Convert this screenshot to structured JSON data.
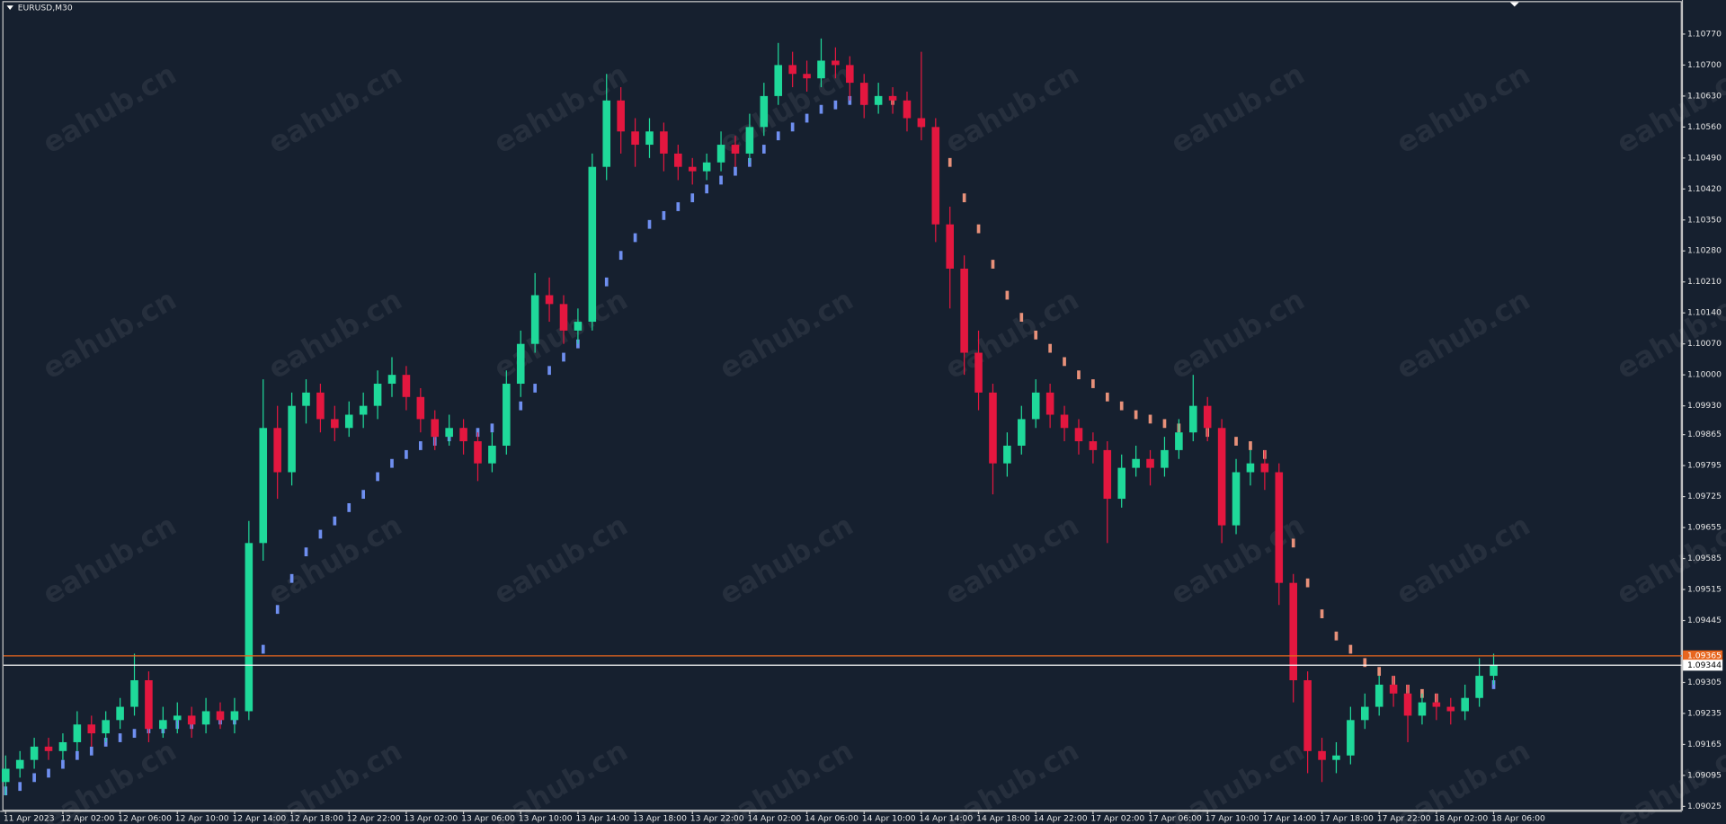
{
  "chart_data": {
    "type": "candlestick",
    "title": "EURUSD,M30",
    "watermark": "eahub.cn",
    "up_color": "#1fd99a",
    "down_color": "#e3173f",
    "xticks": [
      {
        "value": 0,
        "label": "11 Apr 2023"
      },
      {
        "value": 4,
        "label": "12 Apr 02:00"
      },
      {
        "value": 8,
        "label": "12 Apr 06:00"
      },
      {
        "value": 12,
        "label": "12 Apr 10:00"
      },
      {
        "value": 16,
        "label": "12 Apr 14:00"
      },
      {
        "value": 20,
        "label": "12 Apr 18:00"
      },
      {
        "value": 24,
        "label": "12 Apr 22:00"
      },
      {
        "value": 28,
        "label": "13 Apr 02:00"
      },
      {
        "value": 32,
        "label": "13 Apr 06:00"
      },
      {
        "value": 36,
        "label": "13 Apr 10:00"
      },
      {
        "value": 40,
        "label": "13 Apr 14:00"
      },
      {
        "value": 44,
        "label": "13 Apr 18:00"
      },
      {
        "value": 48,
        "label": "13 Apr 22:00"
      },
      {
        "value": 52,
        "label": "14 Apr 02:00"
      },
      {
        "value": 56,
        "label": "14 Apr 06:00"
      },
      {
        "value": 60,
        "label": "14 Apr 10:00"
      },
      {
        "value": 64,
        "label": "14 Apr 14:00"
      },
      {
        "value": 68,
        "label": "14 Apr 18:00"
      },
      {
        "value": 72,
        "label": "14 Apr 22:00"
      },
      {
        "value": 76,
        "label": "17 Apr 02:00"
      },
      {
        "value": 80,
        "label": "17 Apr 06:00"
      },
      {
        "value": 84,
        "label": "17 Apr 10:00"
      },
      {
        "value": 88,
        "label": "17 Apr 14:00"
      },
      {
        "value": 92,
        "label": "17 Apr 18:00"
      },
      {
        "value": 96,
        "label": "17 Apr 22:00"
      },
      {
        "value": 100,
        "label": "18 Apr 02:00"
      },
      {
        "value": 104,
        "label": "18 Apr 06:00"
      }
    ],
    "ylim": [
      1.09015,
      1.10847
    ],
    "yticks": [
      {
        "value": 1.1077,
        "label": "1.10770"
      },
      {
        "value": 1.107,
        "label": "1.10700"
      },
      {
        "value": 1.1063,
        "label": "1.10630"
      },
      {
        "value": 1.1056,
        "label": "1.10560"
      },
      {
        "value": 1.1049,
        "label": "1.10490"
      },
      {
        "value": 1.1042,
        "label": "1.10420"
      },
      {
        "value": 1.1035,
        "label": "1.10350"
      },
      {
        "value": 1.1028,
        "label": "1.10280"
      },
      {
        "value": 1.1021,
        "label": "1.10210"
      },
      {
        "value": 1.1014,
        "label": "1.10140"
      },
      {
        "value": 1.1007,
        "label": "1.10070"
      },
      {
        "value": 1.1,
        "label": "1.10000"
      },
      {
        "value": 1.0993,
        "label": "1.09930"
      },
      {
        "value": 1.09865,
        "label": "1.09865"
      },
      {
        "value": 1.09795,
        "label": "1.09795"
      },
      {
        "value": 1.09725,
        "label": "1.09725"
      },
      {
        "value": 1.09655,
        "label": "1.09655"
      },
      {
        "value": 1.09585,
        "label": "1.09585"
      },
      {
        "value": 1.09515,
        "label": "1.09515"
      },
      {
        "value": 1.09445,
        "label": "1.09445"
      },
      {
        "value": 1.09305,
        "label": "1.09305"
      },
      {
        "value": 1.09235,
        "label": "1.09235"
      },
      {
        "value": 1.09165,
        "label": "1.09165"
      },
      {
        "value": 1.09095,
        "label": "1.09095"
      },
      {
        "value": 1.09025,
        "label": "1.09025"
      }
    ],
    "price_lines": [
      {
        "value": 1.09365,
        "label": "1.09365",
        "color": "#e8661e"
      },
      {
        "value": 1.09344,
        "label": "1.09344",
        "color": "#ffffff"
      }
    ],
    "ohlc": [
      [
        1.0908,
        1.0914,
        1.0905,
        1.0911
      ],
      [
        1.0911,
        1.0915,
        1.0909,
        1.0913
      ],
      [
        1.0913,
        1.0918,
        1.0911,
        1.0916
      ],
      [
        1.0916,
        1.0918,
        1.0913,
        1.0915
      ],
      [
        1.0915,
        1.0919,
        1.0913,
        1.0917
      ],
      [
        1.0917,
        1.0924,
        1.0915,
        1.0921
      ],
      [
        1.0921,
        1.0923,
        1.0916,
        1.0919
      ],
      [
        1.0919,
        1.0924,
        1.0917,
        1.0922
      ],
      [
        1.0922,
        1.0927,
        1.092,
        1.0925
      ],
      [
        1.0925,
        1.0937,
        1.0923,
        1.0931
      ],
      [
        1.0931,
        1.0933,
        1.0917,
        1.092
      ],
      [
        1.092,
        1.0925,
        1.0918,
        1.0922
      ],
      [
        1.0922,
        1.0926,
        1.0919,
        1.0923
      ],
      [
        1.0923,
        1.0925,
        1.0918,
        1.0921
      ],
      [
        1.0921,
        1.0927,
        1.0919,
        1.0924
      ],
      [
        1.0924,
        1.0926,
        1.092,
        1.0922
      ],
      [
        1.0922,
        1.0927,
        1.0919,
        1.0924
      ],
      [
        1.0924,
        1.0967,
        1.0922,
        1.0962
      ],
      [
        1.0962,
        1.0999,
        1.0958,
        1.0988
      ],
      [
        1.0988,
        1.0993,
        1.0972,
        1.0978
      ],
      [
        1.0978,
        1.0996,
        1.0975,
        1.0993
      ],
      [
        1.0993,
        1.0999,
        1.0989,
        1.0996
      ],
      [
        1.0996,
        1.0998,
        1.0987,
        1.099
      ],
      [
        1.099,
        1.0993,
        1.0985,
        1.0988
      ],
      [
        1.0988,
        1.0994,
        1.0986,
        1.0991
      ],
      [
        1.0991,
        1.0996,
        1.0988,
        1.0993
      ],
      [
        1.0993,
        1.1001,
        1.099,
        1.0998
      ],
      [
        1.0998,
        1.1004,
        1.0995,
        1.1
      ],
      [
        1.1,
        1.1002,
        1.0992,
        1.0995
      ],
      [
        1.0995,
        1.0997,
        1.0987,
        1.099
      ],
      [
        1.099,
        1.0992,
        1.0983,
        1.0986
      ],
      [
        1.0986,
        1.0991,
        1.0984,
        1.0988
      ],
      [
        1.0988,
        1.099,
        1.0982,
        1.0985
      ],
      [
        1.0985,
        1.0987,
        1.0976,
        1.098
      ],
      [
        1.098,
        1.0987,
        1.0978,
        1.0984
      ],
      [
        1.0984,
        1.1001,
        1.0982,
        1.0998
      ],
      [
        1.0998,
        1.101,
        1.0995,
        1.1007
      ],
      [
        1.1007,
        1.1023,
        1.1005,
        1.1018
      ],
      [
        1.1018,
        1.1022,
        1.1012,
        1.1016
      ],
      [
        1.1016,
        1.1018,
        1.1007,
        1.101
      ],
      [
        1.101,
        1.1015,
        1.1007,
        1.1012
      ],
      [
        1.1012,
        1.105,
        1.101,
        1.1047
      ],
      [
        1.1047,
        1.1068,
        1.1044,
        1.1062
      ],
      [
        1.1062,
        1.1065,
        1.105,
        1.1055
      ],
      [
        1.1055,
        1.1058,
        1.1047,
        1.1052
      ],
      [
        1.1052,
        1.1058,
        1.1049,
        1.1055
      ],
      [
        1.1055,
        1.1057,
        1.1046,
        1.105
      ],
      [
        1.105,
        1.1052,
        1.1044,
        1.1047
      ],
      [
        1.1047,
        1.1049,
        1.1043,
        1.1046
      ],
      [
        1.1046,
        1.105,
        1.1044,
        1.1048
      ],
      [
        1.1048,
        1.1055,
        1.1046,
        1.1052
      ],
      [
        1.1052,
        1.1054,
        1.1047,
        1.105
      ],
      [
        1.105,
        1.1059,
        1.1048,
        1.1056
      ],
      [
        1.1056,
        1.1066,
        1.1054,
        1.1063
      ],
      [
        1.1063,
        1.1075,
        1.1061,
        1.107
      ],
      [
        1.107,
        1.1073,
        1.1065,
        1.1068
      ],
      [
        1.1068,
        1.1071,
        1.1064,
        1.1067
      ],
      [
        1.1067,
        1.1076,
        1.1065,
        1.1071
      ],
      [
        1.1071,
        1.1074,
        1.1067,
        1.107
      ],
      [
        1.107,
        1.1072,
        1.1062,
        1.1066
      ],
      [
        1.1066,
        1.1068,
        1.1058,
        1.1061
      ],
      [
        1.1061,
        1.1066,
        1.1059,
        1.1063
      ],
      [
        1.1063,
        1.1065,
        1.1059,
        1.1062
      ],
      [
        1.1062,
        1.1064,
        1.1055,
        1.1058
      ],
      [
        1.1058,
        1.1073,
        1.1053,
        1.1056
      ],
      [
        1.1056,
        1.1058,
        1.103,
        1.1034
      ],
      [
        1.1034,
        1.1038,
        1.1015,
        1.1024
      ],
      [
        1.1024,
        1.1027,
        1.1,
        1.1005
      ],
      [
        1.1005,
        1.101,
        1.0992,
        1.0996
      ],
      [
        1.0996,
        1.0998,
        1.0973,
        1.098
      ],
      [
        1.098,
        1.0987,
        1.0977,
        1.0984
      ],
      [
        1.0984,
        1.0993,
        1.0982,
        1.099
      ],
      [
        1.099,
        1.0999,
        1.0988,
        1.0996
      ],
      [
        1.0996,
        1.0998,
        1.0988,
        1.0991
      ],
      [
        1.0991,
        1.0993,
        1.0985,
        1.0988
      ],
      [
        1.0988,
        1.099,
        1.0982,
        1.0985
      ],
      [
        1.0985,
        1.0987,
        1.098,
        1.0983
      ],
      [
        1.0983,
        1.0985,
        1.0962,
        1.0972
      ],
      [
        1.0972,
        1.0982,
        1.097,
        1.0979
      ],
      [
        1.0979,
        1.0984,
        1.0977,
        1.0981
      ],
      [
        1.0981,
        1.0983,
        1.0975,
        1.0979
      ],
      [
        1.0979,
        1.0986,
        1.0977,
        1.0983
      ],
      [
        1.0983,
        1.099,
        1.0981,
        1.0987
      ],
      [
        1.0987,
        1.1,
        1.0985,
        1.0993
      ],
      [
        1.0993,
        1.0995,
        1.0985,
        1.0988
      ],
      [
        1.0988,
        1.099,
        1.0962,
        1.0966
      ],
      [
        1.0966,
        1.0981,
        1.0964,
        1.0978
      ],
      [
        1.0978,
        1.0983,
        1.0975,
        1.098
      ],
      [
        1.098,
        1.0983,
        1.0974,
        1.0978
      ],
      [
        1.0978,
        1.098,
        1.0948,
        1.0953
      ],
      [
        1.0953,
        1.0955,
        1.0926,
        1.0931
      ],
      [
        1.0931,
        1.0933,
        1.091,
        1.0915
      ],
      [
        1.0915,
        1.0918,
        1.0908,
        1.0913
      ],
      [
        1.0913,
        1.0917,
        1.091,
        1.0914
      ],
      [
        1.0914,
        1.0925,
        1.0912,
        1.0922
      ],
      [
        1.0922,
        1.0928,
        1.092,
        1.0925
      ],
      [
        1.0925,
        1.0932,
        1.0923,
        1.093
      ],
      [
        1.093,
        1.0932,
        1.0925,
        1.0928
      ],
      [
        1.0928,
        1.093,
        1.0917,
        1.0923
      ],
      [
        1.0923,
        1.0928,
        1.0921,
        1.0926
      ],
      [
        1.0926,
        1.0928,
        1.0922,
        1.0925
      ],
      [
        1.0925,
        1.0927,
        1.0921,
        1.0924
      ],
      [
        1.0924,
        1.093,
        1.0922,
        1.0927
      ],
      [
        1.0927,
        1.0936,
        1.0925,
        1.0932
      ],
      [
        1.0932,
        1.0937,
        1.093,
        1.09344
      ]
    ],
    "series": [
      {
        "color": "#6f8ff0",
        "values": [
          1.0906,
          1.0907,
          1.0909,
          1.091,
          1.0912,
          1.0914,
          1.0915,
          1.0917,
          1.0918,
          1.0919,
          1.092,
          1.092,
          1.0921,
          1.0921,
          1.0922,
          1.0922,
          1.0922,
          1.0928,
          1.0938,
          1.0947,
          1.0954,
          1.096,
          1.0964,
          1.0967,
          1.097,
          1.0973,
          1.0977,
          1.098,
          1.0982,
          1.0984,
          1.0985,
          1.0986,
          1.0987,
          1.0987,
          1.0988,
          1.099,
          1.0993,
          1.0997,
          1.1001,
          1.1004,
          1.1007,
          1.1013,
          1.1021,
          1.1027,
          1.1031,
          1.1034,
          1.1036,
          1.1038,
          1.104,
          1.1042,
          1.1044,
          1.1046,
          1.1048,
          1.1051,
          1.1054,
          1.1056,
          1.1058,
          1.106,
          1.1061,
          1.1062,
          1.1062,
          1.1062,
          null,
          null,
          null,
          null,
          null,
          null,
          null,
          null,
          null,
          null,
          null,
          null,
          null,
          null,
          null,
          null,
          null,
          null,
          null,
          null,
          null,
          null,
          null,
          null,
          null,
          null,
          null,
          null,
          null,
          null,
          null,
          null,
          null,
          null,
          null,
          null,
          null,
          null,
          null,
          null,
          1.0926,
          1.0928,
          1.093
        ]
      },
      {
        "color": "#e8917a",
        "values": [
          null,
          null,
          null,
          null,
          null,
          null,
          null,
          null,
          null,
          null,
          null,
          null,
          null,
          null,
          null,
          null,
          null,
          null,
          null,
          null,
          null,
          null,
          null,
          null,
          null,
          null,
          null,
          null,
          null,
          null,
          null,
          null,
          null,
          null,
          null,
          null,
          null,
          null,
          null,
          null,
          null,
          null,
          null,
          null,
          null,
          null,
          null,
          null,
          null,
          null,
          null,
          null,
          null,
          null,
          null,
          null,
          null,
          null,
          null,
          null,
          null,
          null,
          1.1062,
          1.106,
          1.1057,
          1.1053,
          1.1048,
          1.104,
          1.1033,
          1.1025,
          1.1018,
          1.1013,
          1.1009,
          1.1006,
          1.1003,
          1.1,
          1.0998,
          1.0995,
          1.0993,
          1.0991,
          1.099,
          1.0989,
          1.0988,
          1.0988,
          1.0987,
          1.0986,
          1.0985,
          1.0984,
          1.0982,
          1.0972,
          1.0962,
          1.0953,
          1.0946,
          1.0941,
          1.0938,
          1.0935,
          1.0933,
          1.0931,
          1.0929,
          1.0928,
          1.0927,
          null,
          null,
          null,
          null
        ]
      }
    ]
  }
}
